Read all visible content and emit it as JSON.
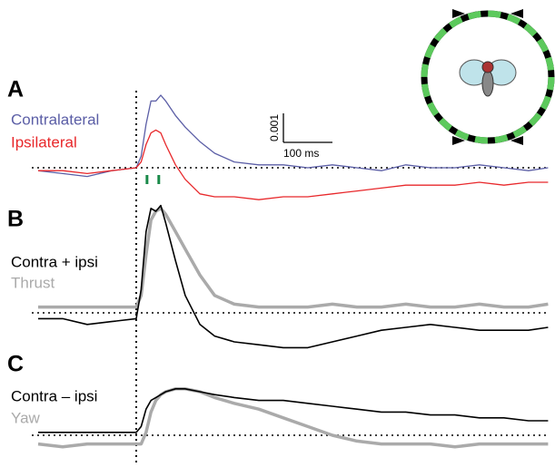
{
  "chart_data": [
    {
      "type": "line",
      "panel": "A",
      "xlim": [
        -213,
        843
      ],
      "ylim": [
        -0.0013,
        0.0028
      ],
      "x": [
        -200,
        -150,
        -100,
        -50,
        0,
        10,
        20,
        30,
        40,
        50,
        60,
        80,
        100,
        130,
        160,
        200,
        250,
        300,
        350,
        400,
        450,
        500,
        550,
        600,
        650,
        700,
        750,
        800,
        840
      ],
      "series": [
        {
          "name": "Contralateral",
          "color": "#5b5ea6",
          "values": [
            -0.0001,
            -0.0002,
            -0.0003,
            -0.0001,
            0,
            0.0004,
            0.0015,
            0.0023,
            0.0023,
            0.0025,
            0.0023,
            0.0018,
            0.0014,
            0.0009,
            0.0005,
            0.0002,
            0.0001,
            0.0001,
            0,
            0.0001,
            0,
            -0.0001,
            0.0001,
            0,
            0,
            0.0001,
            0,
            -0.0001,
            0
          ]
        },
        {
          "name": "Ipsilateral",
          "color": "#e8282b",
          "values": [
            -0.0001,
            -0.0001,
            -0.0002,
            -0.0001,
            0,
            0.0002,
            0.0008,
            0.0012,
            0.0013,
            0.0012,
            0.0008,
            0.0001,
            -0.0004,
            -0.0009,
            -0.001,
            -0.001,
            -0.0011,
            -0.001,
            -0.001,
            -0.0009,
            -0.0008,
            -0.0007,
            -0.0006,
            -0.0006,
            -0.0006,
            -0.0005,
            -0.0006,
            -0.0005,
            -0.0005
          ]
        }
      ],
      "stimulus_marks": {
        "color": "#1a8a4a",
        "x": [
          22,
          46
        ]
      },
      "scale_bar": {
        "y": 0.001,
        "y_label": "0.001",
        "x": 100,
        "x_label": "100 ms"
      }
    },
    {
      "type": "line",
      "panel": "B",
      "xlim": [
        -213,
        843
      ],
      "ylim": [
        -0.0014,
        0.00385
      ],
      "x": [
        -200,
        -150,
        -100,
        -50,
        0,
        10,
        20,
        30,
        40,
        50,
        60,
        80,
        100,
        130,
        160,
        200,
        250,
        300,
        350,
        400,
        450,
        500,
        550,
        600,
        650,
        700,
        750,
        800,
        840
      ],
      "series": [
        {
          "name": "Thrust",
          "color": "#aaaaaa",
          "values": [
            0.0002,
            0.0002,
            0.0002,
            0.0002,
            0.0002,
            0.0006,
            0.002,
            0.0032,
            0.0035,
            0.0036,
            0.0034,
            0.0028,
            0.0022,
            0.0013,
            0.0006,
            0.0003,
            0.0002,
            0.0002,
            0.0002,
            0.0003,
            0.0002,
            0.0002,
            0.0003,
            0.0002,
            0.0002,
            0.0003,
            0.0002,
            0.0002,
            0.0003
          ]
        },
        {
          "name": "Contra + ipsi",
          "color": "#000000",
          "values": [
            -0.0002,
            -0.0002,
            -0.0004,
            -0.0003,
            -0.0002,
            0.0008,
            0.0028,
            0.0036,
            0.0035,
            0.0037,
            0.0031,
            0.0018,
            0.0006,
            -0.0004,
            -0.0008,
            -0.001,
            -0.0011,
            -0.0012,
            -0.0012,
            -0.001,
            -0.0008,
            -0.0006,
            -0.0005,
            -0.0004,
            -0.0005,
            -0.0006,
            -0.0006,
            -0.0006,
            -0.0005
          ]
        }
      ]
    },
    {
      "type": "line",
      "panel": "C",
      "xlim": [
        -213,
        843
      ],
      "ylim": [
        -0.0006,
        0.0019
      ],
      "x": [
        -200,
        -150,
        -100,
        -50,
        0,
        10,
        20,
        30,
        40,
        50,
        60,
        80,
        100,
        130,
        160,
        200,
        250,
        300,
        350,
        400,
        450,
        500,
        550,
        600,
        650,
        700,
        750,
        800,
        840
      ],
      "series": [
        {
          "name": "Yaw",
          "color": "#aaaaaa",
          "values": [
            -0.0003,
            -0.0004,
            -0.0003,
            -0.0003,
            -0.0003,
            -0.0003,
            0.0001,
            0.0008,
            0.0012,
            0.0014,
            0.0015,
            0.0016,
            0.0016,
            0.0015,
            0.0013,
            0.0011,
            0.0009,
            0.0006,
            0.0003,
            0,
            -0.0002,
            -0.0003,
            -0.0003,
            -0.0003,
            -0.0004,
            -0.0003,
            -0.0003,
            -0.0003,
            -0.0003
          ]
        },
        {
          "name": "Contra – ipsi",
          "color": "#000000",
          "values": [
            0.0001,
            0.0001,
            0.0001,
            0.0001,
            0.0001,
            0.0003,
            0.0009,
            0.0012,
            0.0013,
            0.0014,
            0.0015,
            0.0016,
            0.0016,
            0.0015,
            0.0014,
            0.0013,
            0.0012,
            0.0012,
            0.0011,
            0.001,
            0.0009,
            0.0008,
            0.0008,
            0.0007,
            0.0007,
            0.0006,
            0.0006,
            0.0005,
            0.0005
          ]
        }
      ]
    }
  ]
}
